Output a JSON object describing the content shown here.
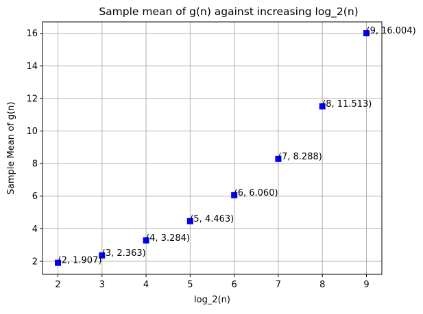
{
  "chart_data": {
    "type": "scatter",
    "title": "Sample mean of g(n) against increasing log_2(n)",
    "xlabel": "log_2(n)",
    "ylabel": "Sample Mean of g(n)",
    "xlim": [
      1.65,
      9.35
    ],
    "ylim": [
      1.2,
      16.7
    ],
    "x_ticks": [
      2,
      3,
      4,
      5,
      6,
      7,
      8,
      9
    ],
    "y_ticks": [
      2,
      4,
      6,
      8,
      10,
      12,
      14,
      16
    ],
    "grid": true,
    "marker": "square",
    "colors": {
      "marker": "#0000ff",
      "grid": "#b0b0b0",
      "axes": "#000000"
    },
    "points": [
      {
        "x": 2,
        "y": 1.907,
        "label": "(2, 1.907)"
      },
      {
        "x": 3,
        "y": 2.363,
        "label": "(3, 2.363)"
      },
      {
        "x": 4,
        "y": 3.284,
        "label": "(4, 3.284)"
      },
      {
        "x": 5,
        "y": 4.463,
        "label": "(5, 4.463)"
      },
      {
        "x": 6,
        "y": 6.06,
        "label": "(6, 6.060)"
      },
      {
        "x": 7,
        "y": 8.288,
        "label": "(7, 8.288)"
      },
      {
        "x": 8,
        "y": 11.513,
        "label": "(8, 11.513)"
      },
      {
        "x": 9,
        "y": 16.004,
        "label": "(9, 16.004)"
      }
    ]
  }
}
